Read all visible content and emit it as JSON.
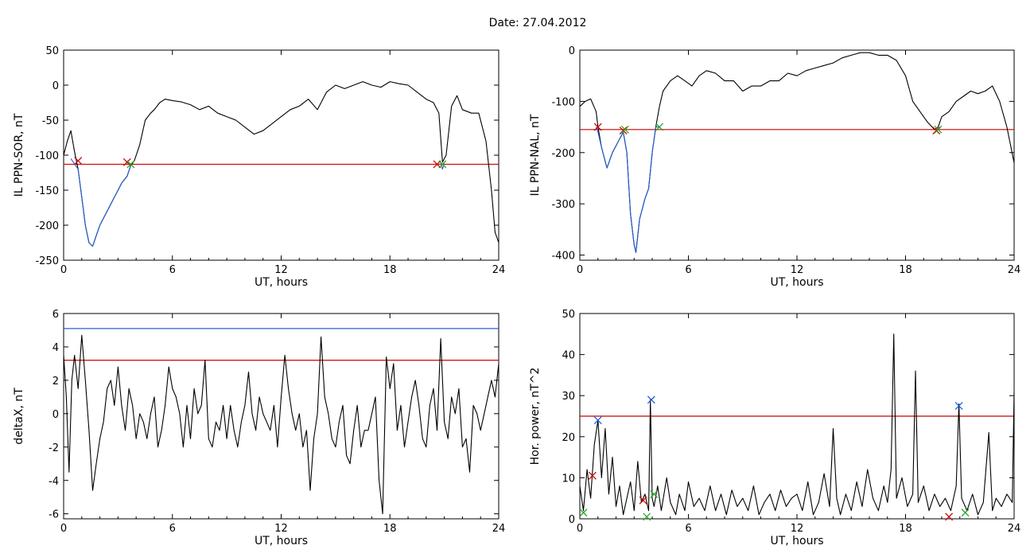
{
  "page_title": "Date:  27.04.2012",
  "colors": {
    "data_line": "#000000",
    "event_line": "#1f5fd0",
    "threshold_red": "#cc0000",
    "threshold_blue": "#2060e0",
    "marker_red": "#cc0000",
    "marker_green": "#22aa22",
    "marker_blue": "#2060e0"
  },
  "chart_data": [
    {
      "type": "line",
      "ylabel": "IL PPN-SOR, nT",
      "xlabel": "UT, hours",
      "xlim": [
        0,
        24
      ],
      "ylim": [
        -250,
        50
      ],
      "xticks": [
        0,
        6,
        12,
        18,
        24
      ],
      "yticks": [
        -250,
        -200,
        -150,
        -100,
        -50,
        0,
        50
      ],
      "hlines": [
        {
          "y": -113,
          "color": "#cc0000"
        }
      ],
      "series": [
        {
          "x": [
            0,
            0.2,
            0.4,
            0.6,
            0.8,
            1.0,
            1.2,
            1.4,
            1.6,
            1.8,
            2.0,
            2.2,
            2.5,
            2.8,
            3.0,
            3.2,
            3.5,
            3.7,
            3.9,
            4.2,
            4.5,
            4.8,
            5.0,
            5.3,
            5.6,
            6.0,
            6.5,
            7.0,
            7.5,
            8.0,
            8.5,
            9.0,
            9.5,
            10.0,
            10.5,
            11.0,
            11.5,
            12.0,
            12.5,
            13.0,
            13.5,
            14.0,
            14.5,
            15.0,
            15.5,
            16.0,
            16.5,
            17.0,
            17.5,
            18.0,
            18.5,
            19.0,
            19.5,
            20.0,
            20.4,
            20.7,
            20.9,
            21.1,
            21.4,
            21.7,
            22.0,
            22.5,
            22.9,
            23.3,
            23.6,
            23.8,
            24.0
          ],
          "y": [
            -100,
            -80,
            -65,
            -95,
            -120,
            -160,
            -200,
            -225,
            -230,
            -215,
            -200,
            -190,
            -175,
            -160,
            -150,
            -140,
            -130,
            -115,
            -108,
            -85,
            -50,
            -40,
            -35,
            -25,
            -20,
            -22,
            -24,
            -28,
            -35,
            -30,
            -40,
            -45,
            -50,
            -60,
            -70,
            -65,
            -55,
            -45,
            -35,
            -30,
            -20,
            -35,
            -10,
            0,
            -5,
            0,
            5,
            0,
            -3,
            5,
            2,
            0,
            -10,
            -20,
            -25,
            -40,
            -110,
            -100,
            -30,
            -15,
            -35,
            -40,
            -40,
            -80,
            -150,
            -210,
            -225
          ]
        },
        {
          "x": [
            0.4,
            0.8,
            1.0,
            1.2,
            1.4,
            1.6,
            1.8,
            2.0,
            2.2,
            2.5,
            2.8,
            3.0,
            3.2,
            3.5,
            3.7
          ],
          "y": [
            -105,
            -120,
            -160,
            -200,
            -225,
            -230,
            -215,
            -200,
            -190,
            -175,
            -160,
            -150,
            -140,
            -130,
            -115
          ],
          "color": "#1f5fd0"
        },
        {
          "x": [
            20.8,
            20.9,
            21.0
          ],
          "y": [
            -110,
            -120,
            -112
          ],
          "color": "#1f5fd0"
        }
      ],
      "markers": [
        {
          "x": 0.8,
          "y": -108,
          "color": "#cc0000"
        },
        {
          "x": 3.5,
          "y": -110,
          "color": "#cc0000"
        },
        {
          "x": 3.7,
          "y": -113,
          "color": "#22aa22"
        },
        {
          "x": 20.6,
          "y": -113,
          "color": "#cc0000"
        },
        {
          "x": 20.9,
          "y": -113,
          "color": "#22aa22"
        }
      ]
    },
    {
      "type": "line",
      "ylabel": "IL PPN-NAL, nT",
      "xlabel": "UT, hours",
      "xlim": [
        0,
        24
      ],
      "ylim": [
        -410,
        0
      ],
      "xticks": [
        0,
        6,
        12,
        18,
        24
      ],
      "yticks": [
        -400,
        -300,
        -200,
        -100,
        0
      ],
      "hlines": [
        {
          "y": -155,
          "color": "#cc0000"
        }
      ],
      "series": [
        {
          "x": [
            0,
            0.3,
            0.6,
            0.9,
            1.0,
            1.2,
            1.5,
            1.8,
            2.1,
            2.4,
            2.6,
            2.8,
            3.0,
            3.1,
            3.3,
            3.6,
            3.8,
            4.0,
            4.2,
            4.4,
            4.6,
            5.0,
            5.4,
            5.8,
            6.2,
            6.6,
            7.0,
            7.5,
            8.0,
            8.5,
            9.0,
            9.5,
            10.0,
            10.5,
            11.0,
            11.5,
            12.0,
            12.5,
            13.0,
            13.5,
            14.0,
            14.5,
            15.0,
            15.5,
            16.0,
            16.5,
            17.0,
            17.5,
            18.0,
            18.4,
            18.8,
            19.2,
            19.6,
            19.8,
            20.0,
            20.4,
            20.8,
            21.2,
            21.6,
            22.0,
            22.4,
            22.8,
            23.2,
            23.6,
            24.0
          ],
          "y": [
            -110,
            -100,
            -95,
            -120,
            -150,
            -190,
            -230,
            -200,
            -180,
            -160,
            -200,
            -320,
            -380,
            -395,
            -330,
            -290,
            -270,
            -200,
            -150,
            -110,
            -80,
            -60,
            -50,
            -60,
            -70,
            -50,
            -40,
            -45,
            -60,
            -60,
            -80,
            -70,
            -70,
            -60,
            -60,
            -45,
            -50,
            -40,
            -35,
            -30,
            -25,
            -15,
            -10,
            -5,
            -5,
            -10,
            -10,
            -20,
            -50,
            -100,
            -120,
            -140,
            -155,
            -150,
            -130,
            -120,
            -100,
            -90,
            -80,
            -85,
            -80,
            -70,
            -100,
            -150,
            -220
          ]
        },
        {
          "x": [
            0.9,
            1.0,
            1.2,
            1.5,
            1.8,
            2.1,
            2.4,
            2.6,
            2.8,
            3.0,
            3.1,
            3.3,
            3.6,
            3.8,
            4.0,
            4.2,
            4.4
          ],
          "y": [
            -150,
            -160,
            -190,
            -230,
            -200,
            -180,
            -160,
            -200,
            -320,
            -380,
            -395,
            -330,
            -290,
            -270,
            -200,
            -150,
            -150
          ],
          "color": "#1f5fd0"
        }
      ],
      "markers": [
        {
          "x": 1.0,
          "y": -150,
          "color": "#cc0000"
        },
        {
          "x": 2.4,
          "y": -157,
          "color": "#cc0000"
        },
        {
          "x": 2.5,
          "y": -155,
          "color": "#22aa22"
        },
        {
          "x": 4.4,
          "y": -150,
          "color": "#22aa22"
        },
        {
          "x": 19.7,
          "y": -157,
          "color": "#cc0000"
        },
        {
          "x": 19.8,
          "y": -155,
          "color": "#22aa22"
        }
      ]
    },
    {
      "type": "line",
      "ylabel": "deltaX, nT",
      "xlabel": "UT, hours",
      "xlim": [
        0,
        24
      ],
      "ylim": [
        -6.3,
        6
      ],
      "xticks": [
        0,
        6,
        12,
        18,
        24
      ],
      "yticks": [
        -6,
        -4,
        -2,
        0,
        2,
        4,
        6
      ],
      "hlines": [
        {
          "y": 5.1,
          "color": "#2060e0"
        },
        {
          "y": 3.2,
          "color": "#cc0000"
        }
      ],
      "series": [
        {
          "x": [
            0,
            0.15,
            0.3,
            0.45,
            0.6,
            0.8,
            1.0,
            1.2,
            1.4,
            1.6,
            1.8,
            2.0,
            2.2,
            2.4,
            2.6,
            2.8,
            3.0,
            3.2,
            3.4,
            3.6,
            3.8,
            4.0,
            4.2,
            4.4,
            4.6,
            4.8,
            5.0,
            5.2,
            5.4,
            5.6,
            5.8,
            6.0,
            6.2,
            6.4,
            6.6,
            6.8,
            7.0,
            7.2,
            7.4,
            7.6,
            7.8,
            8.0,
            8.2,
            8.4,
            8.6,
            8.8,
            9.0,
            9.2,
            9.4,
            9.6,
            9.8,
            10.0,
            10.2,
            10.4,
            10.6,
            10.8,
            11.0,
            11.2,
            11.4,
            11.6,
            11.8,
            12.0,
            12.2,
            12.4,
            12.6,
            12.8,
            13.0,
            13.2,
            13.4,
            13.6,
            13.8,
            14.0,
            14.2,
            14.4,
            14.6,
            14.8,
            15.0,
            15.2,
            15.4,
            15.6,
            15.8,
            16.0,
            16.2,
            16.4,
            16.6,
            16.8,
            17.0,
            17.2,
            17.4,
            17.6,
            17.8,
            18.0,
            18.2,
            18.4,
            18.6,
            18.8,
            19.0,
            19.2,
            19.4,
            19.6,
            19.8,
            20.0,
            20.2,
            20.4,
            20.6,
            20.8,
            21.0,
            21.2,
            21.4,
            21.6,
            21.8,
            22.0,
            22.2,
            22.4,
            22.6,
            22.8,
            23.0,
            23.2,
            23.4,
            23.6,
            23.8,
            24.0
          ],
          "y": [
            3.5,
            1.0,
            -3.5,
            2.0,
            3.5,
            1.5,
            4.7,
            2.0,
            -1.0,
            -4.6,
            -3.0,
            -1.5,
            -0.5,
            1.5,
            2.0,
            0.5,
            2.8,
            0.5,
            -1.0,
            1.5,
            0.5,
            -1.5,
            0.0,
            -0.5,
            -1.5,
            0.0,
            1.0,
            -2.0,
            -1.0,
            0.5,
            2.8,
            1.5,
            1.0,
            0.0,
            -2.0,
            0.5,
            -1.5,
            1.5,
            0.0,
            0.5,
            3.2,
            -1.5,
            -2.0,
            -0.5,
            -1.0,
            0.5,
            -1.5,
            0.5,
            -1.0,
            -2.0,
            -0.5,
            0.5,
            2.5,
            0.0,
            -1.0,
            1.0,
            0.0,
            -0.5,
            -1.0,
            0.5,
            -2.0,
            1.0,
            3.5,
            1.5,
            0.0,
            -1.0,
            0.0,
            -2.0,
            -1.0,
            -4.6,
            -1.5,
            0.0,
            4.6,
            1.0,
            0.0,
            -1.5,
            -2.0,
            -0.5,
            0.5,
            -2.5,
            -3.0,
            -1.0,
            0.5,
            -2.0,
            -1.0,
            -1.0,
            0.0,
            1.0,
            -4.0,
            -6.0,
            3.4,
            1.5,
            3.0,
            -1.0,
            0.5,
            -2.0,
            -0.5,
            1.0,
            2.0,
            0.5,
            -1.5,
            -2.0,
            0.5,
            1.5,
            -1.0,
            4.5,
            -0.5,
            -1.5,
            1.0,
            0.0,
            1.5,
            -2.0,
            -1.5,
            -3.5,
            0.5,
            0.0,
            -1.0,
            0.0,
            1.0,
            2.0,
            1.0,
            3.0
          ]
        }
      ]
    },
    {
      "type": "line",
      "ylabel": "Hor. power, nT^2",
      "xlabel": "UT, hours",
      "xlim": [
        0,
        24
      ],
      "ylim": [
        0,
        50
      ],
      "xticks": [
        0,
        6,
        12,
        18,
        24
      ],
      "yticks": [
        0,
        10,
        20,
        30,
        40,
        50
      ],
      "hlines": [
        {
          "y": 25,
          "color": "#cc0000"
        }
      ],
      "series": [
        {
          "x": [
            0,
            0.2,
            0.4,
            0.6,
            0.8,
            1.0,
            1.2,
            1.4,
            1.6,
            1.8,
            2.0,
            2.2,
            2.4,
            2.6,
            2.8,
            3.0,
            3.2,
            3.4,
            3.6,
            3.8,
            3.9,
            4.0,
            4.1,
            4.3,
            4.5,
            4.8,
            5.0,
            5.3,
            5.5,
            5.8,
            6.0,
            6.3,
            6.6,
            6.9,
            7.2,
            7.5,
            7.8,
            8.1,
            8.4,
            8.7,
            9.0,
            9.3,
            9.6,
            9.9,
            10.2,
            10.5,
            10.8,
            11.1,
            11.4,
            11.7,
            12.0,
            12.3,
            12.6,
            12.9,
            13.2,
            13.5,
            13.8,
            14.0,
            14.2,
            14.4,
            14.7,
            15.0,
            15.3,
            15.6,
            15.9,
            16.2,
            16.5,
            16.8,
            17.0,
            17.2,
            17.35,
            17.5,
            17.8,
            18.1,
            18.4,
            18.55,
            18.7,
            19.0,
            19.3,
            19.6,
            19.9,
            20.2,
            20.5,
            20.8,
            20.95,
            21.1,
            21.4,
            21.7,
            22.0,
            22.3,
            22.6,
            22.8,
            23.0,
            23.3,
            23.6,
            23.9,
            24.0
          ],
          "y": [
            8,
            2,
            12,
            5,
            18,
            24,
            10,
            22,
            6,
            15,
            3,
            8,
            1,
            5,
            9,
            2,
            14,
            4,
            6,
            2,
            29,
            5,
            3,
            8,
            2,
            10,
            4,
            1,
            6,
            2,
            9,
            3,
            5,
            2,
            8,
            2,
            6,
            1,
            7,
            3,
            5,
            2,
            8,
            1,
            4,
            6,
            2,
            7,
            3,
            5,
            6,
            2,
            9,
            1,
            4,
            11,
            3,
            22,
            5,
            1,
            6,
            2,
            9,
            3,
            12,
            5,
            2,
            8,
            4,
            12,
            45,
            5,
            10,
            3,
            6,
            36,
            4,
            8,
            2,
            6,
            3,
            5,
            2,
            8,
            28,
            5,
            2,
            6,
            1,
            4,
            21,
            2,
            5,
            3,
            6,
            4,
            31
          ]
        }
      ],
      "markers": [
        {
          "x": 0.2,
          "y": 1.5,
          "color": "#22aa22"
        },
        {
          "x": 0.7,
          "y": 10.5,
          "color": "#cc0000"
        },
        {
          "x": 1.0,
          "y": 24,
          "color": "#2060e0"
        },
        {
          "x": 3.5,
          "y": 4.5,
          "color": "#cc0000"
        },
        {
          "x": 3.7,
          "y": 0.5,
          "color": "#22aa22"
        },
        {
          "x": 3.95,
          "y": 29,
          "color": "#2060e0"
        },
        {
          "x": 4.1,
          "y": 6,
          "color": "#22aa22"
        },
        {
          "x": 20.4,
          "y": 0.5,
          "color": "#cc0000"
        },
        {
          "x": 20.95,
          "y": 27.5,
          "color": "#2060e0"
        },
        {
          "x": 21.3,
          "y": 1.5,
          "color": "#22aa22"
        }
      ]
    }
  ]
}
